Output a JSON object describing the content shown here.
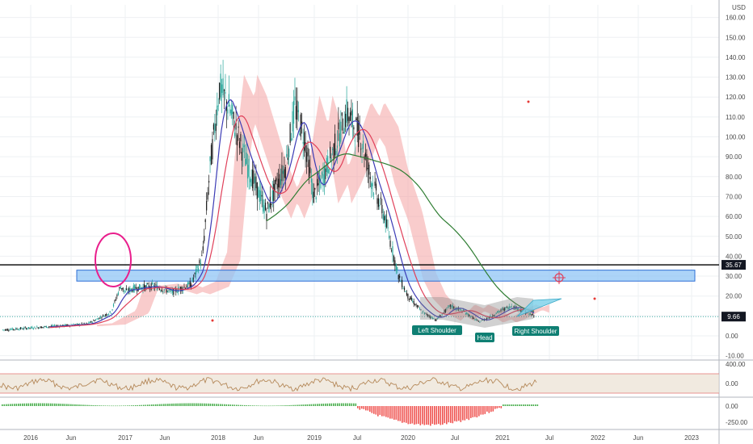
{
  "currency_label": "USD",
  "chart_data": {
    "type": "candlestick",
    "x_axis": {
      "ticks": [
        "2016",
        "Jun",
        "2017",
        "Jun",
        "2018",
        "Jun",
        "2019",
        "Jul",
        "2020",
        "Jul",
        "2021",
        "Jul",
        "2022",
        "Jun",
        "2023"
      ]
    },
    "price_axis": {
      "min": -10,
      "max": 160,
      "ticks": [
        "160.00",
        "150.00",
        "140.00",
        "130.00",
        "120.00",
        "110.00",
        "100.00",
        "90.00",
        "80.00",
        "70.00",
        "60.00",
        "50.00",
        "40.00",
        "30.00",
        "20.00",
        "10.00",
        "0.00",
        "-10.00"
      ]
    },
    "price_tags": [
      {
        "value": 35.67,
        "label": "35.67",
        "bg": "#131722"
      },
      {
        "value": 9.66,
        "label": "9.66",
        "bg": "#131722"
      }
    ],
    "resistance_line": 35.67,
    "current_price": 9.66,
    "support_zone": {
      "from": 27.5,
      "to": 33.0,
      "color": "#90c5f5"
    },
    "pattern_labels": [
      "Left Shoulder",
      "Head",
      "Right Shoulder"
    ],
    "rsi_panel": {
      "ticks": [
        "400.00",
        "0.00"
      ]
    },
    "macd_panel": {
      "ticks": [
        "0.00",
        "-250.00"
      ]
    },
    "colors": {
      "up": "#26a69a",
      "down": "#1a1a1a",
      "ema_fast": "#3b3bb5",
      "ema_mid": "#e0405a",
      "ema_slow": "#2e7d32",
      "cloud_bear": "#f4a3a3",
      "cloud_bull": "#8fd19e",
      "rsi_line": "#b5895a",
      "rsi_band": "#e8dccb",
      "macd_pos": "#4caf50",
      "macd_neg": "#ef5350",
      "annotation": "#e91e8c",
      "tag_bg": "#0f7f73"
    }
  }
}
